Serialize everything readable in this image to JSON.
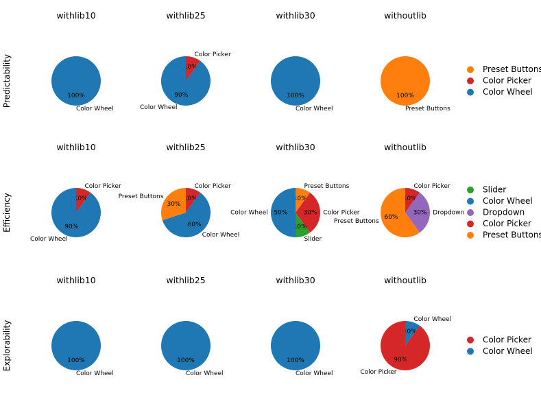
{
  "colors": {
    "Color Wheel": "#1f77b4",
    "Color Picker": "#d62728",
    "Preset Buttons": "#ff7f0e",
    "Dropdown": "#9467bd",
    "Slider": "#2ca02c"
  },
  "chart_data": [
    {
      "type": "pie",
      "row_label": "Predictability",
      "legend": [
        "Preset Buttons",
        "Color Picker",
        "Color Wheel"
      ],
      "charts": [
        {
          "title": "withlib10",
          "slices": [
            {
              "label": "Color Wheel",
              "value": 100,
              "pct": "100%"
            }
          ]
        },
        {
          "title": "withlib25",
          "slices": [
            {
              "label": "Color Picker",
              "value": 10,
              "pct": "10%"
            },
            {
              "label": "Color Wheel",
              "value": 90,
              "pct": "90%"
            }
          ]
        },
        {
          "title": "withlib30",
          "slices": [
            {
              "label": "Color Wheel",
              "value": 100,
              "pct": "100%"
            }
          ]
        },
        {
          "title": "withoutlib",
          "slices": [
            {
              "label": "Preset Buttons",
              "value": 100,
              "pct": "100%"
            }
          ]
        }
      ]
    },
    {
      "type": "pie",
      "row_label": "Efficiency",
      "legend": [
        "Slider",
        "Color Wheel",
        "Dropdown",
        "Color Picker",
        "Preset Buttons"
      ],
      "charts": [
        {
          "title": "withlib10",
          "slices": [
            {
              "label": "Color Picker",
              "value": 10,
              "pct": "10%"
            },
            {
              "label": "Color Wheel",
              "value": 90,
              "pct": "90%"
            }
          ]
        },
        {
          "title": "withlib25",
          "slices": [
            {
              "label": "Color Picker",
              "value": 10,
              "pct": "10%"
            },
            {
              "label": "Color Wheel",
              "value": 60,
              "pct": "60%"
            },
            {
              "label": "Preset Buttons",
              "value": 30,
              "pct": "30%"
            }
          ]
        },
        {
          "title": "withlib30",
          "slices": [
            {
              "label": "Preset Buttons",
              "value": 10,
              "pct": "10%"
            },
            {
              "label": "Color Picker",
              "value": 30,
              "pct": "30%"
            },
            {
              "label": "Slider",
              "value": 10,
              "pct": "10%"
            },
            {
              "label": "Color Wheel",
              "value": 50,
              "pct": "50%"
            }
          ]
        },
        {
          "title": "withoutlib",
          "slices": [
            {
              "label": "Color Picker",
              "value": 10,
              "pct": "10%"
            },
            {
              "label": "Dropdown",
              "value": 30,
              "pct": "30%"
            },
            {
              "label": "Preset Buttons",
              "value": 60,
              "pct": "60%"
            }
          ]
        }
      ]
    },
    {
      "type": "pie",
      "row_label": "Explorability",
      "legend": [
        "Color Picker",
        "Color Wheel"
      ],
      "charts": [
        {
          "title": "withlib10",
          "slices": [
            {
              "label": "Color Wheel",
              "value": 100,
              "pct": "100%"
            }
          ]
        },
        {
          "title": "withlib25",
          "slices": [
            {
              "label": "Color Wheel",
              "value": 100,
              "pct": "100%"
            }
          ]
        },
        {
          "title": "withlib30",
          "slices": [
            {
              "label": "Color Wheel",
              "value": 100,
              "pct": "100%"
            }
          ]
        },
        {
          "title": "withoutlib",
          "slices": [
            {
              "label": "Color Wheel",
              "value": 10,
              "pct": "10%"
            },
            {
              "label": "Color Picker",
              "value": 90,
              "pct": "90%"
            }
          ]
        }
      ]
    }
  ]
}
